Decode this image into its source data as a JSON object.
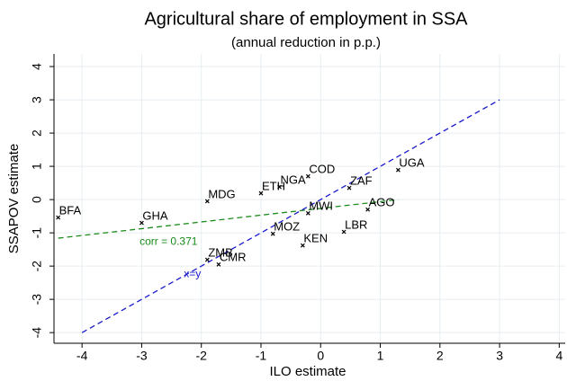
{
  "chart_data": {
    "type": "scatter",
    "title": "Agricultural share of employment in SSA",
    "subtitle": "(annual reduction in p.p.)",
    "x_label": "ILO estimate",
    "y_label": "SSAPOV estimate",
    "xlim": [
      -4.47,
      4.1
    ],
    "ylim": [
      -4.32,
      4.38
    ],
    "xticks": [
      -4,
      -3,
      -2,
      -1,
      0,
      1,
      2,
      3,
      4
    ],
    "yticks": [
      -4,
      -3,
      -2,
      -1,
      0,
      1,
      2,
      3,
      4
    ],
    "grid": true,
    "points": {
      "color": "#000000",
      "labels": [
        "BFA",
        "GHA",
        "MDG",
        "ETH",
        "NGA",
        "COD",
        "UGA",
        "ZAF",
        "AGO",
        "MWI",
        "LBR",
        "MOZ",
        "KEN",
        "ZMB",
        "CMR"
      ],
      "x": [
        -4.4,
        -3.0,
        -1.9,
        -1.0,
        -0.69,
        -0.21,
        1.3,
        0.48,
        0.79,
        -0.21,
        0.39,
        -0.8,
        -0.3,
        -1.9,
        -1.71
      ],
      "y": [
        -0.54,
        -0.7,
        -0.05,
        0.19,
        0.38,
        0.7,
        0.89,
        0.35,
        -0.3,
        -0.41,
        -0.97,
        -1.03,
        -1.38,
        -1.81,
        -1.95
      ]
    },
    "lines": [
      {
        "color": "#1a8a1a",
        "x": [
          -4.4,
          1.3
        ],
        "y": [
          -1.16,
          0.0
        ]
      },
      {
        "color": "#1a1acc",
        "x": [
          -4,
          3
        ],
        "y": [
          -4,
          3
        ]
      }
    ],
    "annotations": [
      {
        "text": "corr = 0.371",
        "color": "#1a8a1a",
        "x": -2.55,
        "y": -1.27
      },
      {
        "text": "x=y",
        "color": "#1a1acc",
        "x": -2.15,
        "y": -2.25
      }
    ]
  }
}
